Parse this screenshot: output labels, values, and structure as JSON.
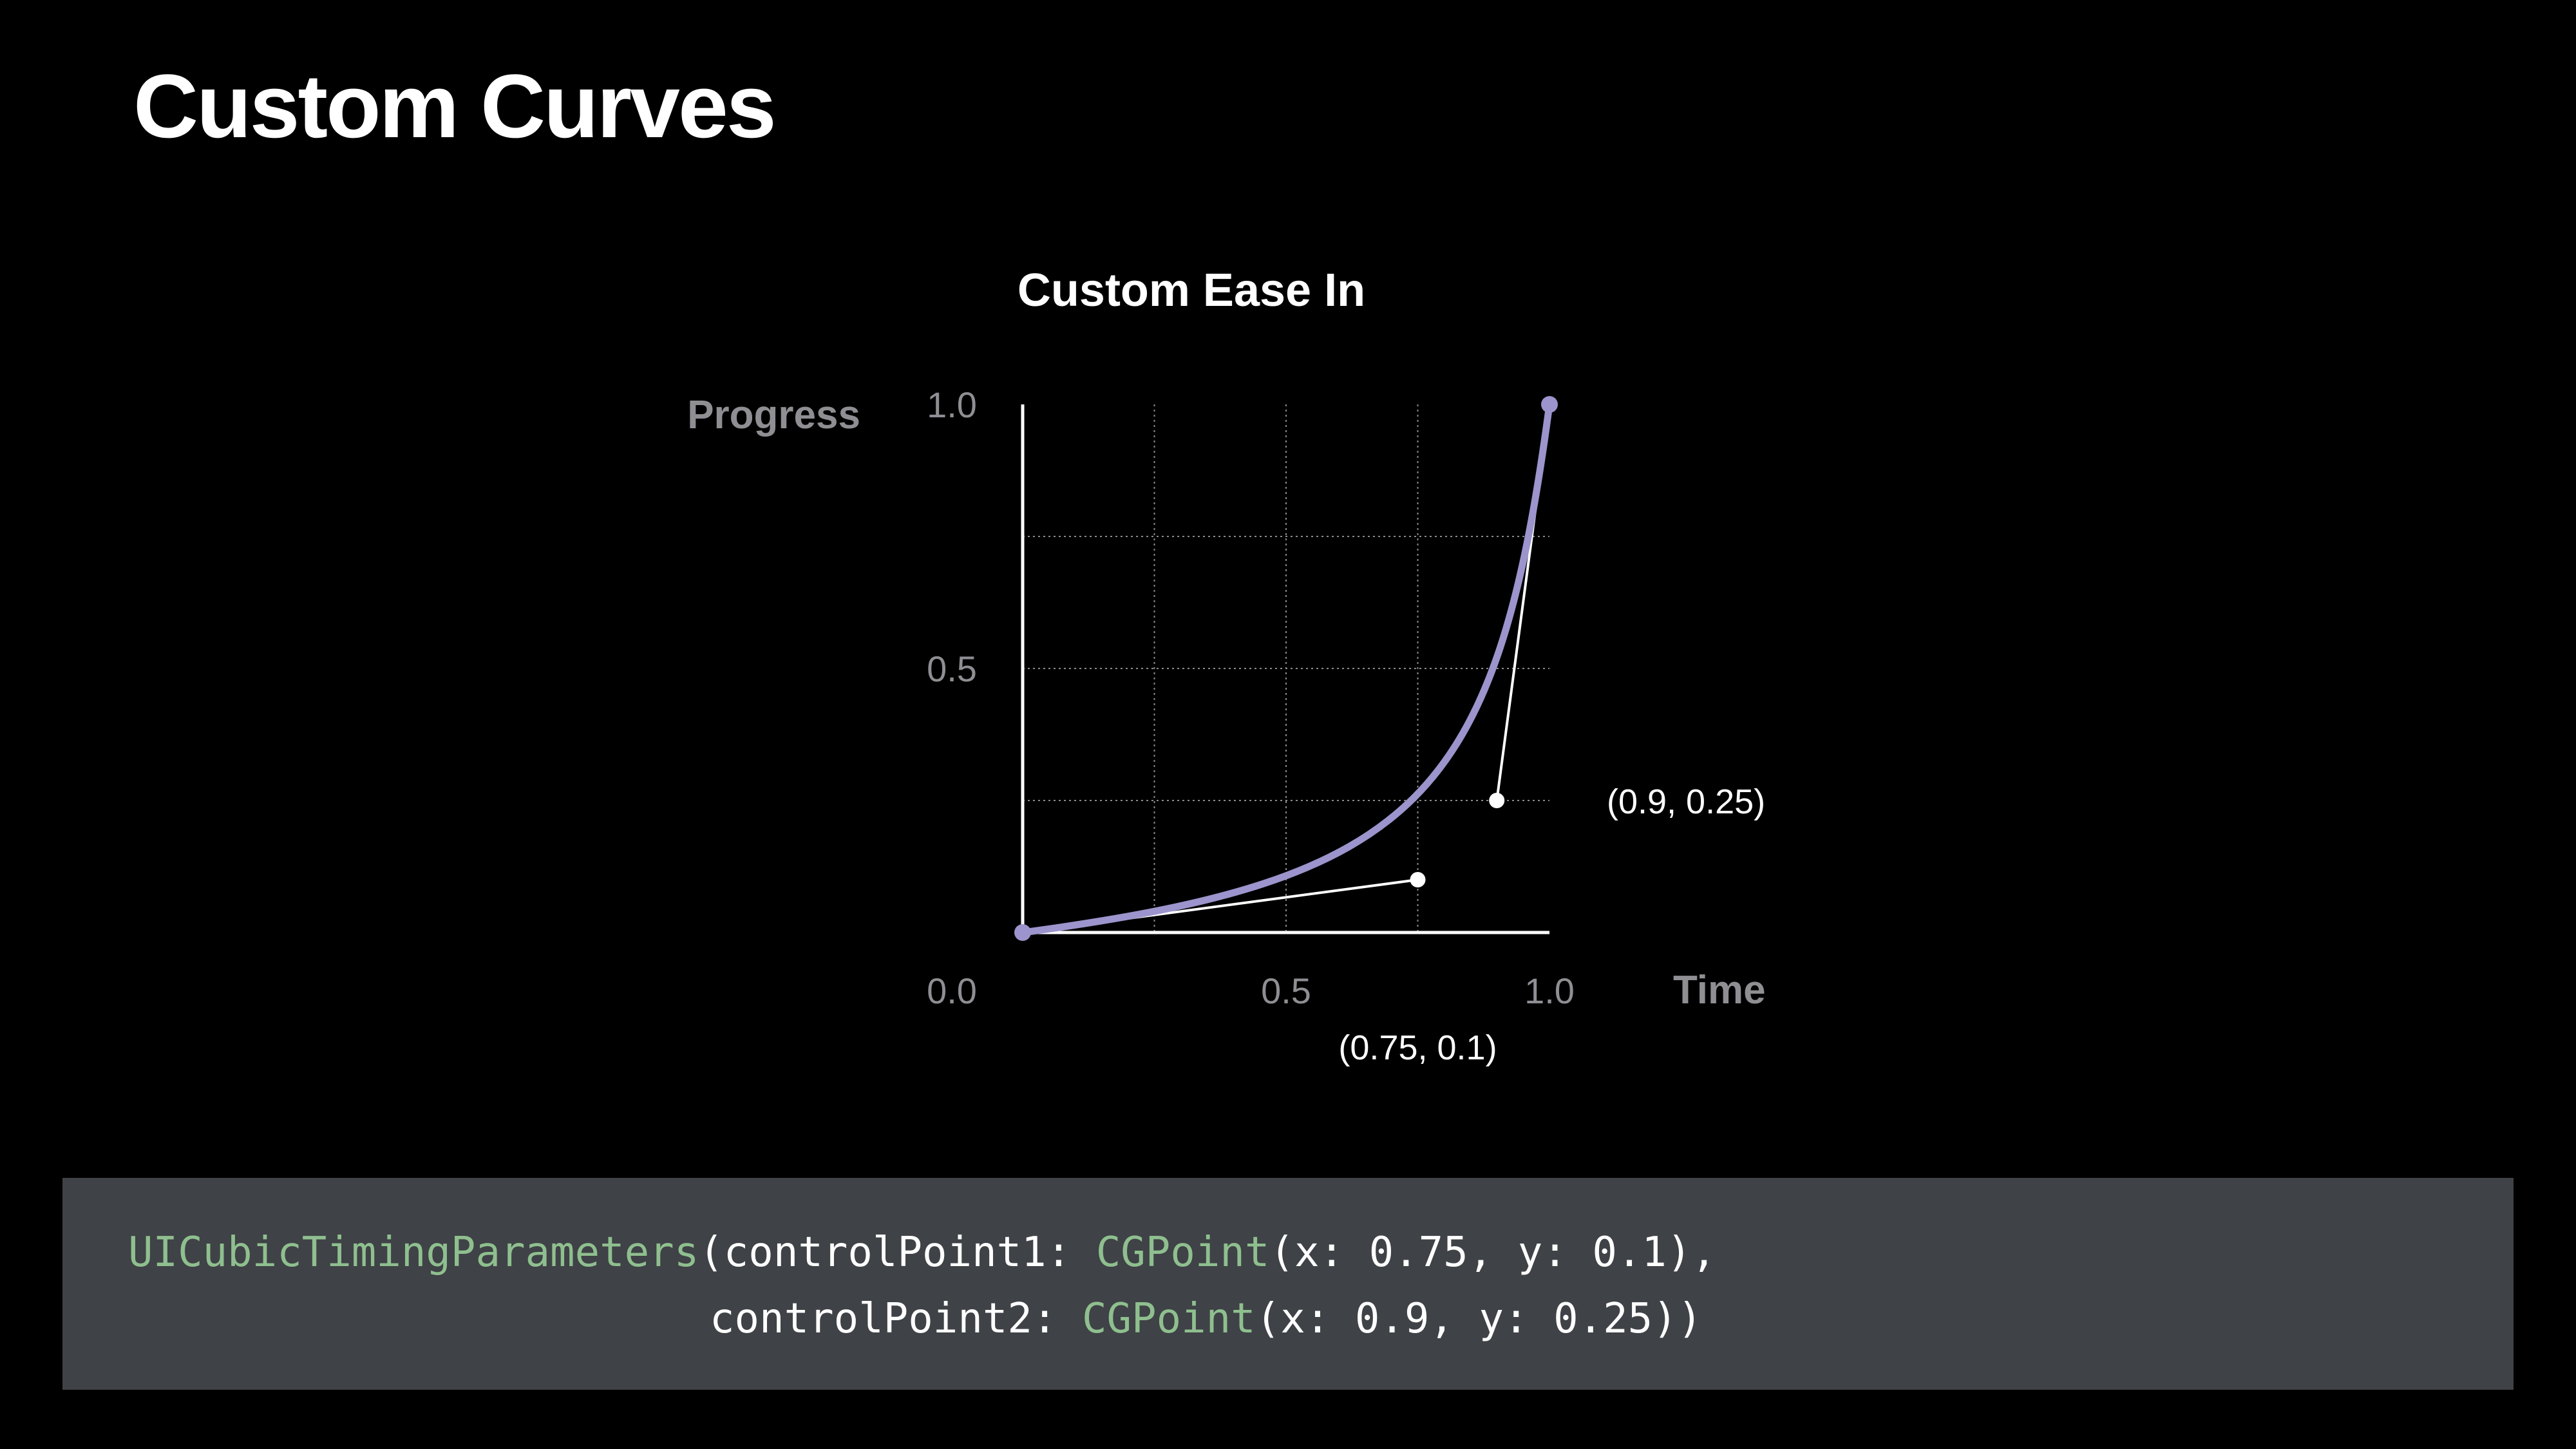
{
  "slide": {
    "title": "Custom Curves"
  },
  "colors": {
    "background": "#000000",
    "curve": "#9c94cc",
    "axis": "#ffffff",
    "grid": "#8a8a8a",
    "muted": "#8e8e93",
    "code_bg": "#3f4246",
    "code_type": "#8fbf8f"
  },
  "chart_data": {
    "type": "line",
    "title": "Custom Ease In",
    "xlabel": "Time",
    "ylabel": "Progress",
    "xlim": [
      0,
      1
    ],
    "ylim": [
      0,
      1
    ],
    "x_ticks": [
      {
        "value": 0,
        "label": "0.0"
      },
      {
        "value": 0.5,
        "label": "0.5"
      },
      {
        "value": 1,
        "label": "1.0"
      }
    ],
    "y_ticks": [
      {
        "value": 0.5,
        "label": "0.5"
      },
      {
        "value": 1,
        "label": "1.0"
      }
    ],
    "grid": true,
    "grid_lines": [
      0.25,
      0.5,
      0.75
    ],
    "curve": {
      "kind": "cubic-bezier",
      "p0": [
        0,
        0
      ],
      "p1": [
        0.75,
        0.1
      ],
      "p2": [
        0.9,
        0.25
      ],
      "p3": [
        1,
        1
      ]
    },
    "control_points": [
      {
        "x": 0.75,
        "y": 0.1,
        "label": "(0.75, 0.1)",
        "anchor": [
          0,
          0
        ]
      },
      {
        "x": 0.9,
        "y": 0.25,
        "label": "(0.9, 0.25)",
        "anchor": [
          1,
          1
        ]
      }
    ]
  },
  "code": {
    "line1": {
      "type": "UICubicTimingParameters",
      "arg": "(controlPoint1: ",
      "ctor": "CGPoint",
      "values": "(x: 0.75, y: 0.1),"
    },
    "line2": {
      "arg": "controlPoint2: ",
      "ctor": "CGPoint",
      "values": "(x: 0.9, y: 0.25))"
    }
  }
}
